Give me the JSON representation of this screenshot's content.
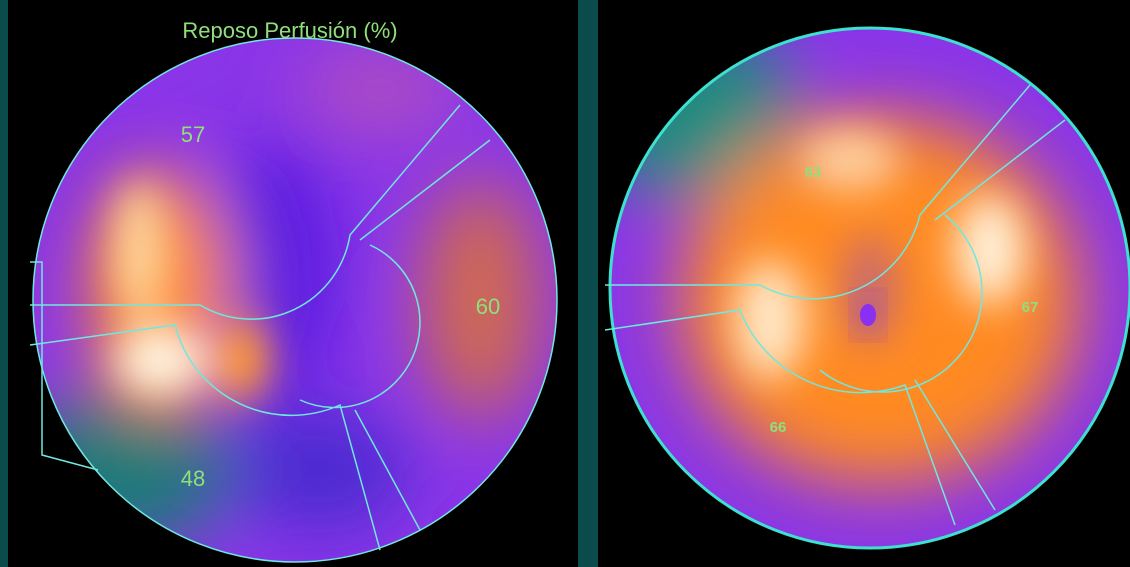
{
  "panels": [
    {
      "title": "Reposo Perfusión (%)",
      "regions": [
        {
          "label": 57
        },
        {
          "label": 60
        },
        {
          "label": 48
        }
      ]
    },
    {
      "regions": [
        {
          "label": 63
        },
        {
          "label": 67
        },
        {
          "label": 66
        }
      ]
    }
  ]
}
